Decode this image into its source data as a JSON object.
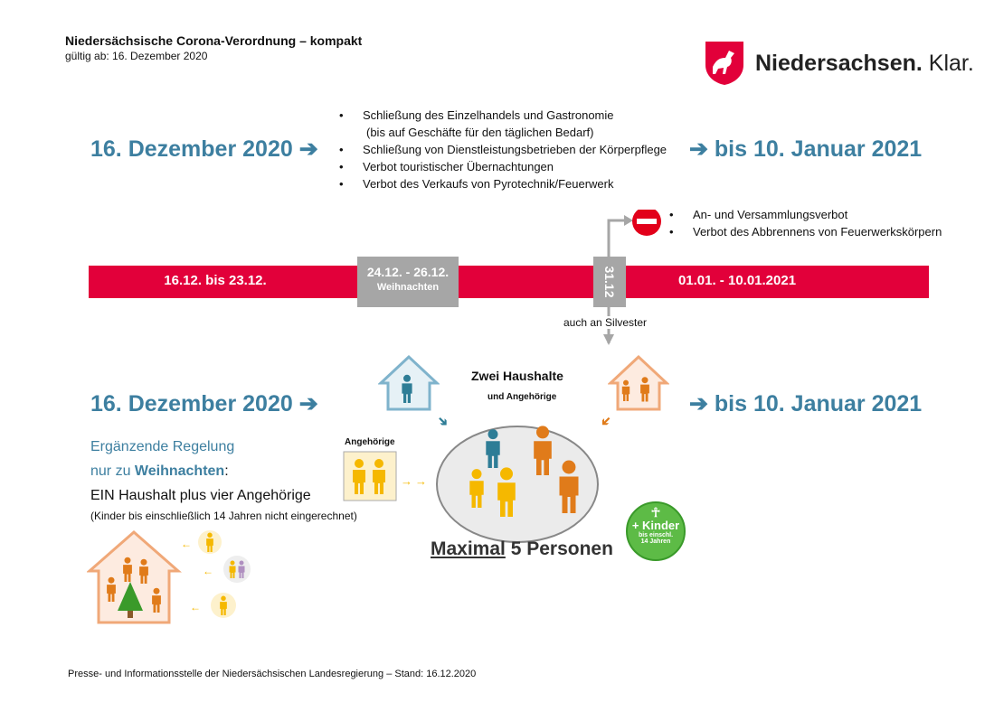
{
  "header": {
    "title": "Niedersächsische Corona-Verordnung – kompakt",
    "valid_from": "gültig ab: 16. Dezember 2020"
  },
  "logo": {
    "brand": "Niedersachsen.",
    "claim": "Klar.",
    "icon": "saxony-horse-crest-icon"
  },
  "colors": {
    "accent_blue": "#3d7fa0",
    "bar_red": "#e2003a",
    "grey": "#a6a6a6",
    "orange": "#e07b1a",
    "yellow": "#f5b800",
    "green": "#5dbb46"
  },
  "row1": {
    "start": "16. Dezember 2020",
    "end": "bis 10. Januar 2021",
    "bullets": [
      "Schließung des Einzelhandels und Gastronomie",
      "(bis auf Geschäfte für den täglichen Bedarf)",
      "Schließung von Dienstleistungsbetrieben der Körperpflege",
      "Verbot touristischer Übernachtungen",
      "Verbot des Verkaufs von Pyrotechnik/Feuerwerk"
    ]
  },
  "silvester": {
    "bullets": [
      "An- und Versammlungsverbot",
      "Verbot des Abbrennens von Feuerwerkskörpern"
    ],
    "note": "auch an  Silvester"
  },
  "timeline": {
    "seg1": "16.12. bis 23.12.",
    "xmas_dates": "24.12. - 26.12.",
    "xmas_label": "Weihnachten",
    "nye": "31.12",
    "seg3": "01.01. - 10.01.2021"
  },
  "row2": {
    "start": "16. Dezember 2020",
    "end": "bis 10. Januar 2021",
    "rule_line1": "Ergänzende Regelung",
    "rule_line2_prefix": "nur zu ",
    "rule_line2_bold": "Weihnachten",
    "rule_line2_suffix": ":",
    "rule_line3": "EIN Haushalt plus vier Angehörige",
    "rule_note": "(Kinder bis einschließlich 14 Jahren nicht eingerechnet)",
    "households_title": "Zwei Haushalte",
    "households_sub": "und Angehörige",
    "relatives_label": "Angehörige",
    "max_underlined": "Maximal",
    "max_rest": " 5 Personen",
    "kids_title": "+ Kinder",
    "kids_sub1": "bis einschl.",
    "kids_sub2": "14 Jahren"
  },
  "footer": "Presse- und Informationsstelle der Niedersächsischen Landesregierung – Stand: 16.12.2020"
}
